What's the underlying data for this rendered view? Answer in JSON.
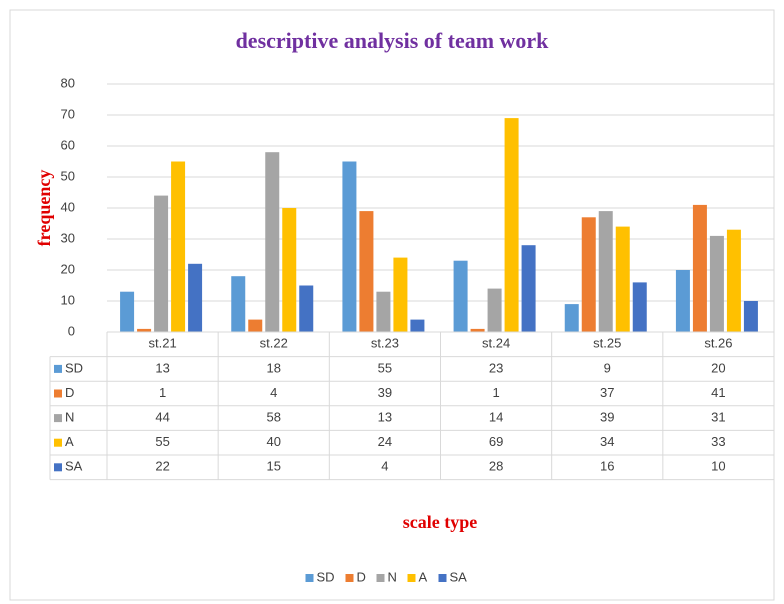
{
  "chart_data": {
    "type": "bar",
    "title": "descriptive analysis of team work",
    "y_label": "frequency",
    "x_label": "scale type",
    "categories": [
      "st.21",
      "st.22",
      "st.23",
      "st.24",
      "st.25",
      "st.26"
    ],
    "series": [
      {
        "name": "SD",
        "color": "#5b9bd5",
        "values": [
          13,
          18,
          55,
          23,
          9,
          20
        ]
      },
      {
        "name": "D",
        "color": "#ed7d31",
        "values": [
          1,
          4,
          39,
          1,
          37,
          41
        ]
      },
      {
        "name": "N",
        "color": "#a5a5a5",
        "values": [
          44,
          58,
          13,
          14,
          39,
          31
        ]
      },
      {
        "name": "A",
        "color": "#ffc000",
        "values": [
          55,
          40,
          24,
          69,
          34,
          33
        ]
      },
      {
        "name": "SA",
        "color": "#4472c4",
        "values": [
          22,
          15,
          4,
          28,
          16,
          10
        ]
      }
    ],
    "ylim": [
      0,
      80
    ],
    "yticks": [
      0,
      10,
      20,
      30,
      40,
      50,
      60,
      70,
      80
    ],
    "grid": true,
    "data_table": true,
    "legend": "bottom"
  }
}
